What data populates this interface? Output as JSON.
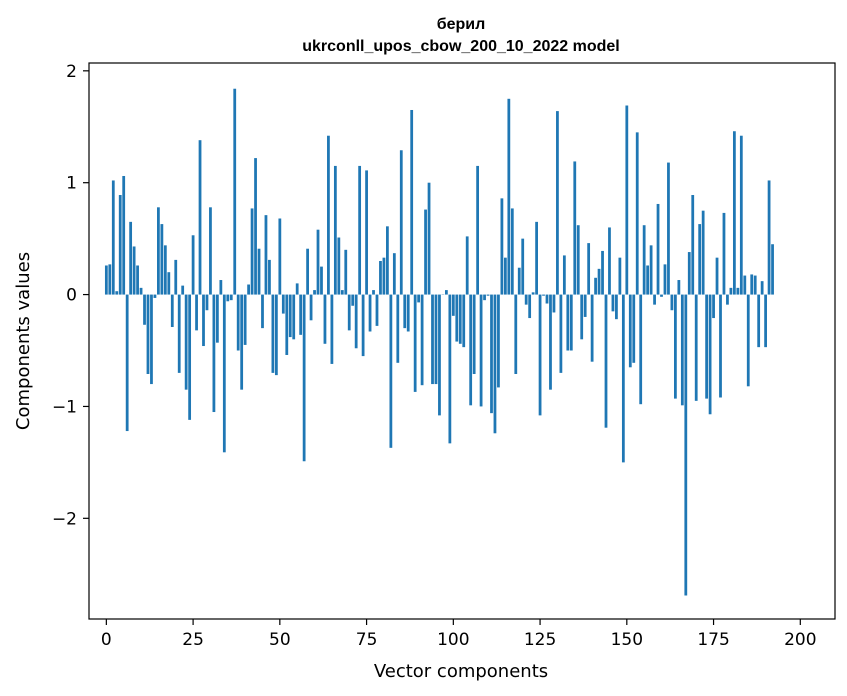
{
  "chart_data": {
    "type": "bar",
    "title": "берил",
    "subtitle": "ukrconll_upos_cbow_200_10_2022 model",
    "xlabel": "Vector components",
    "ylabel": "Components values",
    "x_ticks": [
      "0",
      "25",
      "50",
      "75",
      "100",
      "125",
      "150",
      "175",
      "200"
    ],
    "y_ticks": [
      "−2",
      "−1",
      "0",
      "1",
      "2"
    ],
    "xlim": [
      -5,
      210
    ],
    "ylim": [
      -2.9,
      2.07
    ],
    "bar_color": "#1f77b4",
    "grid": false,
    "values": [
      0.26,
      0.27,
      1.02,
      0.03,
      0.89,
      1.06,
      -1.22,
      0.65,
      0.43,
      0.26,
      0.06,
      -0.27,
      -0.71,
      -0.8,
      -0.03,
      0.78,
      0.63,
      0.44,
      0.2,
      -0.29,
      0.31,
      -0.7,
      0.08,
      -0.85,
      -1.12,
      0.53,
      -0.32,
      1.38,
      -0.46,
      -0.14,
      0.78,
      -1.05,
      -0.43,
      0.13,
      -1.41,
      -0.06,
      -0.05,
      1.84,
      -0.5,
      -0.85,
      -0.45,
      0.09,
      0.77,
      1.22,
      0.41,
      -0.3,
      0.71,
      0.31,
      -0.7,
      -0.72,
      0.68,
      -0.17,
      -0.54,
      -0.38,
      -0.4,
      0.1,
      -0.36,
      -1.49,
      0.41,
      -0.23,
      0.04,
      0.58,
      0.25,
      -0.44,
      1.42,
      -0.62,
      1.15,
      0.51,
      0.04,
      0.4,
      -0.32,
      -0.1,
      -0.48,
      1.15,
      -0.55,
      1.11,
      -0.33,
      0.04,
      -0.28,
      0.3,
      0.33,
      0.61,
      -1.37,
      0.37,
      -0.61,
      1.29,
      -0.3,
      -0.33,
      1.65,
      -0.87,
      -0.07,
      -0.81,
      0.76,
      1.0,
      -0.8,
      -0.8,
      -1.08,
      0.0,
      0.04,
      -1.33,
      -0.19,
      -0.42,
      -0.44,
      -0.47,
      0.52,
      -0.99,
      -0.71,
      1.15,
      -1.0,
      -0.05,
      -0.01,
      -1.06,
      -1.24,
      -0.83,
      0.86,
      0.33,
      1.75,
      0.77,
      -0.71,
      0.24,
      0.5,
      -0.09,
      -0.21,
      0.02,
      0.65,
      -1.08,
      -0.01,
      -0.08,
      -0.85,
      -0.16,
      1.64,
      -0.7,
      0.35,
      -0.5,
      -0.5,
      1.19,
      0.62,
      -0.4,
      -0.2,
      0.46,
      -0.6,
      0.15,
      0.23,
      0.39,
      -1.19,
      0.6,
      -0.15,
      -0.22,
      0.33,
      -1.5,
      1.69,
      -0.65,
      -0.61,
      1.45,
      -0.98,
      0.62,
      0.26,
      0.44,
      -0.09,
      0.81,
      -0.02,
      0.27,
      1.18,
      -0.14,
      -0.93,
      0.13,
      -0.99,
      -2.69,
      0.38,
      0.89,
      -0.95,
      0.63,
      0.75,
      -0.93,
      -1.07,
      -0.21,
      0.33,
      -0.92,
      0.73,
      -0.09,
      0.06,
      1.46,
      0.06,
      1.42,
      0.17,
      -0.82,
      0.18,
      0.17,
      -0.47,
      0.12,
      -0.47,
      1.02,
      0.45
    ]
  }
}
